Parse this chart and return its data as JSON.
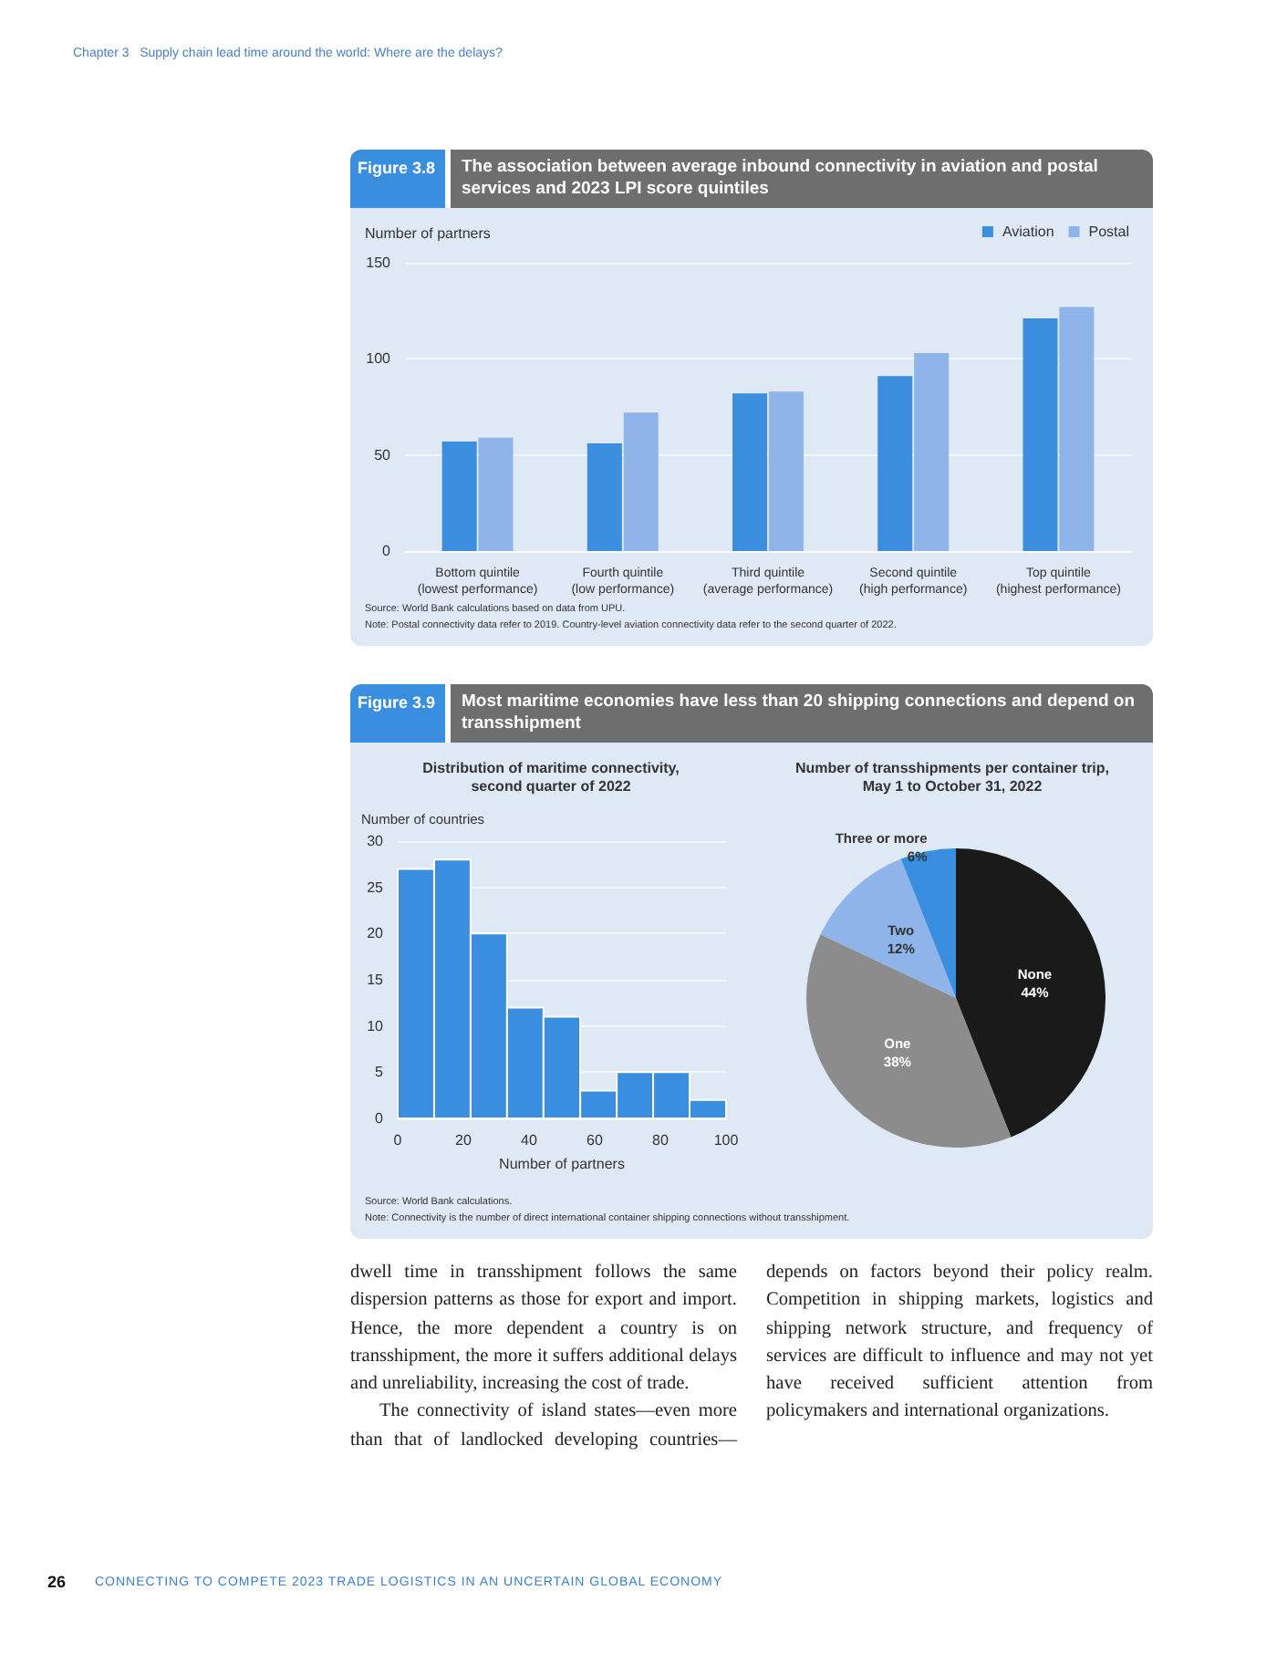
{
  "chart_data": [
    {
      "type": "bar",
      "title": "The association between average inbound connectivity in aviation and postal services and 2023 LPI score quintiles",
      "ylabel": "Number of partners",
      "categories": [
        "Bottom quintile\n(lowest performance)",
        "Fourth quintile\n(low performance)",
        "Third quintile\n(average performance)",
        "Second quintile\n(high performance)",
        "Top quintile\n(highest performance)"
      ],
      "series": [
        {
          "name": "Aviation",
          "color": "#3b8ede",
          "values": [
            57,
            56,
            82,
            91,
            121
          ]
        },
        {
          "name": "Postal",
          "color": "#8fb4e9",
          "values": [
            59,
            72,
            83,
            103,
            127
          ]
        }
      ],
      "ylim": [
        0,
        150
      ],
      "yticks": [
        0,
        50,
        100,
        150
      ],
      "grid": "y",
      "legend": "top right",
      "annotations": [
        "Chapter 3   Supply chain lead time around the world: Where are the delays?",
        "Figure 3.8",
        "Source: World Bank calculations based on data from UPU.",
        "Note: Postal connectivity data refer to 2019. Country-level aviation connectivity data refer to the second quarter of 2022."
      ]
    },
    {
      "type": "histogram",
      "title": "Distribution of maritime connectivity,\nsecond quarter of 2022",
      "ylabel": "Number of countries",
      "xlabel": "Number of partners",
      "bins": [
        0,
        11.1,
        22.2,
        33.3,
        44.4,
        55.6,
        66.7,
        77.8,
        88.9,
        100
      ],
      "values": [
        27,
        28,
        20,
        12,
        11,
        3,
        5,
        5,
        2
      ],
      "color": "#3a8ee0",
      "xlim": [
        0,
        100
      ],
      "xticks": [
        0,
        20,
        40,
        60,
        80,
        100
      ],
      "ylim": [
        0,
        30
      ],
      "yticks": [
        0,
        5,
        10,
        15,
        20,
        25,
        30
      ],
      "grid": "y",
      "annotations": [
        "Figure 3.9",
        "Most maritime economies have less than 20 shipping connections and depend on transshipment",
        "Source: World Bank calculations.",
        "Note: Connectivity is the number of direct international container shipping connections without transshipment."
      ]
    },
    {
      "type": "pie",
      "title": "Number of transshipments per container trip,\nMay 1 to October 31, 2022",
      "categories": [
        "None",
        "One",
        "Two",
        "Three or more"
      ],
      "values": [
        44,
        38,
        12,
        6
      ],
      "value_labels": [
        "44%",
        "38%",
        "12%",
        "6%"
      ],
      "colors": [
        "#1a1a1a",
        "#8c8c8c",
        "#8fb4e9",
        "#3a8ee0"
      ],
      "annotations": [
        "dwell time in transshipment follows the same dispersion patterns as those for export and import. Hence, the more dependent a country is on transshipment, the more it suffers additional delays and unreliability, increasing the cost of trade.",
        "The connectivity of island states—even more than that of landlocked developing countries—depends on factors beyond their policy realm. Competition in shipping markets, logistics and shipping network structure, and frequency of services are difficult to influence and may not yet have received sufficient attention from policymakers and international organizations.",
        "26",
        "CONNECTING TO COMPETE 2023 TRADE LOGISTICS IN AN UNCERTAIN GLOBAL ECONOMY"
      ]
    }
  ]
}
